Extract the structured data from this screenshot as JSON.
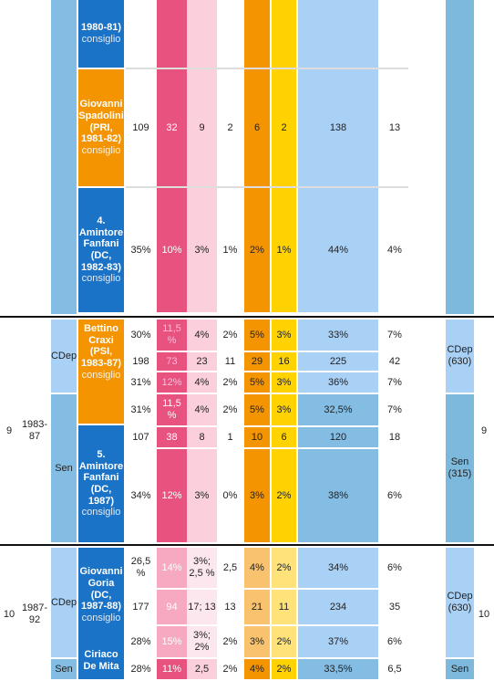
{
  "leaders": {
    "cossiga_tail": {
      "name": "1980-81)",
      "role": "consiglio"
    },
    "spadolini": {
      "name": "Giovanni Spadolini (PRI, 1981-82)",
      "role": "consiglio"
    },
    "fanfani4": {
      "name": "4. Amintore Fanfani (DC, 1982-83)",
      "role": "consiglio"
    },
    "craxi": {
      "name": "Bettino Craxi (PSI, 1983-87)",
      "role": "consiglio"
    },
    "fanfani5": {
      "name": "5. Amintore Fanfani (DC, 1987)",
      "role": "consiglio"
    },
    "goria": {
      "name": "Giovanni Goria (DC, 1987-88)",
      "role": "consiglio"
    },
    "demita": {
      "name": "Ciriaco De Mita"
    }
  },
  "legislatures": [
    {
      "num": "9",
      "years": "1983-87",
      "cdep": "CDep",
      "sen": "Sen",
      "cdep_seats": "CDep (630)",
      "sen_seats": "Sen (315)",
      "right_num": "9"
    },
    {
      "num": "10",
      "years": "1987-92",
      "cdep": "CDep",
      "sen": "Sen",
      "cdep_seats": "CDep (630)",
      "sen_seats": "Sen",
      "right_num": "10"
    }
  ],
  "rows": {
    "spadolini": [
      "109",
      "32",
      "9",
      "2",
      "6",
      "2",
      "138",
      "13"
    ],
    "fanfani4": [
      "35%",
      "10%",
      "3%",
      "1%",
      "2%",
      "1%",
      "44%",
      "4%"
    ],
    "l9_r1": [
      "30%",
      "11,5 %",
      "4%",
      "2%",
      "5%",
      "3%",
      "33%",
      "7%"
    ],
    "l9_r2": [
      "198",
      "73",
      "23",
      "11",
      "29",
      "16",
      "225",
      "42"
    ],
    "l9_r3": [
      "31%",
      "12%",
      "4%",
      "2%",
      "5%",
      "3%",
      "36%",
      "7%"
    ],
    "l9_r4": [
      "31%",
      "11,5 %",
      "4%",
      "2%",
      "5%",
      "3%",
      "32,5%",
      "7%"
    ],
    "l9_r5": [
      "107",
      "38",
      "8",
      "1",
      "10",
      "6",
      "120",
      "18"
    ],
    "l9_r6": [
      "34%",
      "12%",
      "3%",
      "0%",
      "3%",
      "2%",
      "38%",
      "6%"
    ],
    "l10_r1": [
      "26,5 %",
      "14%",
      "3%; 2,5 %",
      "2,5",
      "4%",
      "2%",
      "34%",
      "6%"
    ],
    "l10_r2": [
      "177",
      "94",
      "17; 13",
      "13",
      "21",
      "11",
      "234",
      "35"
    ],
    "l10_r3": [
      "28%",
      "15%",
      "3%; 2%",
      "2%",
      "3%",
      "2%",
      "37%",
      "6%"
    ],
    "l10_r4": [
      "28%",
      "11%",
      "2,5",
      "2%",
      "4%",
      "2%",
      "33,5%",
      "6,5"
    ]
  }
}
